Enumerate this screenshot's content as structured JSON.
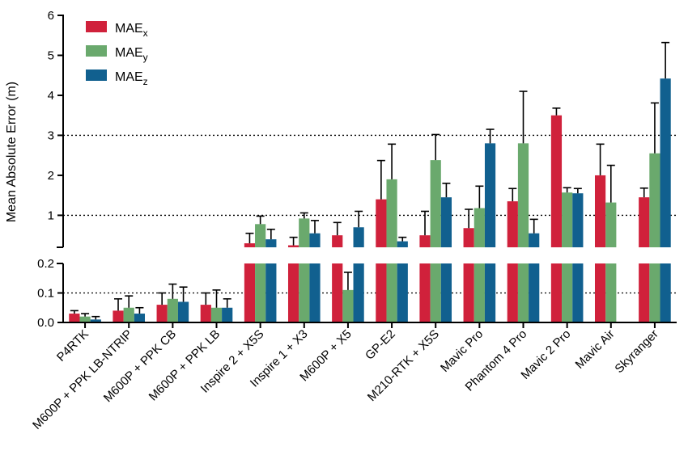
{
  "chart_data": {
    "type": "bar",
    "ylabel": "Mean Absolute Error (m)",
    "categories": [
      "P4RTK",
      "M600P + PPK LB-NTRIP",
      "M600P + PPK CB",
      "M600P + PPK LB",
      "Inspire 2 + X5S",
      "Inspire 1 + X3",
      "M600P + X5",
      "GP-E2",
      "M210-RTK + X5S",
      "Mavic Pro",
      "Phantom 4 Pro",
      "Mavic 2 Pro",
      "Mavic Air",
      "Skyranger"
    ],
    "y_axis_broken": true,
    "lower_segment": {
      "ylim": [
        0,
        0.2
      ],
      "ticks": [
        "0.0",
        "0.1",
        "0.2"
      ]
    },
    "upper_segment": {
      "ylim": [
        0.2,
        6
      ],
      "ticks": [
        "1",
        "2",
        "3",
        "4",
        "5",
        "6"
      ]
    },
    "reference_lines": [
      0.1,
      1,
      3
    ],
    "legend": {
      "position": "top-left"
    },
    "series": [
      {
        "name": "MAE",
        "subscript": "x",
        "color": "#d0213b",
        "values": [
          0.03,
          0.04,
          0.06,
          0.06,
          0.3,
          0.25,
          0.5,
          1.4,
          0.5,
          0.68,
          1.35,
          3.5,
          2.0,
          1.45
        ],
        "errors": [
          0.01,
          0.04,
          0.04,
          0.04,
          0.25,
          0.2,
          0.32,
          0.97,
          0.6,
          0.47,
          0.32,
          0.18,
          0.78,
          0.23
        ]
      },
      {
        "name": "MAE",
        "subscript": "y",
        "color": "#6aa96d",
        "values": [
          0.02,
          0.05,
          0.08,
          0.05,
          0.78,
          0.92,
          0.11,
          1.9,
          2.38,
          1.18,
          2.8,
          1.57,
          1.32,
          2.55
        ],
        "errors": [
          0.01,
          0.04,
          0.05,
          0.06,
          0.2,
          0.14,
          0.06,
          0.88,
          0.64,
          0.55,
          1.3,
          0.12,
          0.93,
          1.26
        ]
      },
      {
        "name": "MAE",
        "subscript": "z",
        "color": "#11608f",
        "values": [
          0.01,
          0.03,
          0.07,
          0.05,
          0.4,
          0.55,
          0.7,
          0.35,
          1.45,
          2.8,
          0.55,
          1.55,
          null,
          4.42
        ],
        "errors": [
          0.01,
          0.02,
          0.05,
          0.03,
          0.25,
          0.32,
          0.4,
          0.1,
          0.35,
          0.35,
          0.35,
          0.12,
          null,
          0.9
        ]
      }
    ]
  }
}
